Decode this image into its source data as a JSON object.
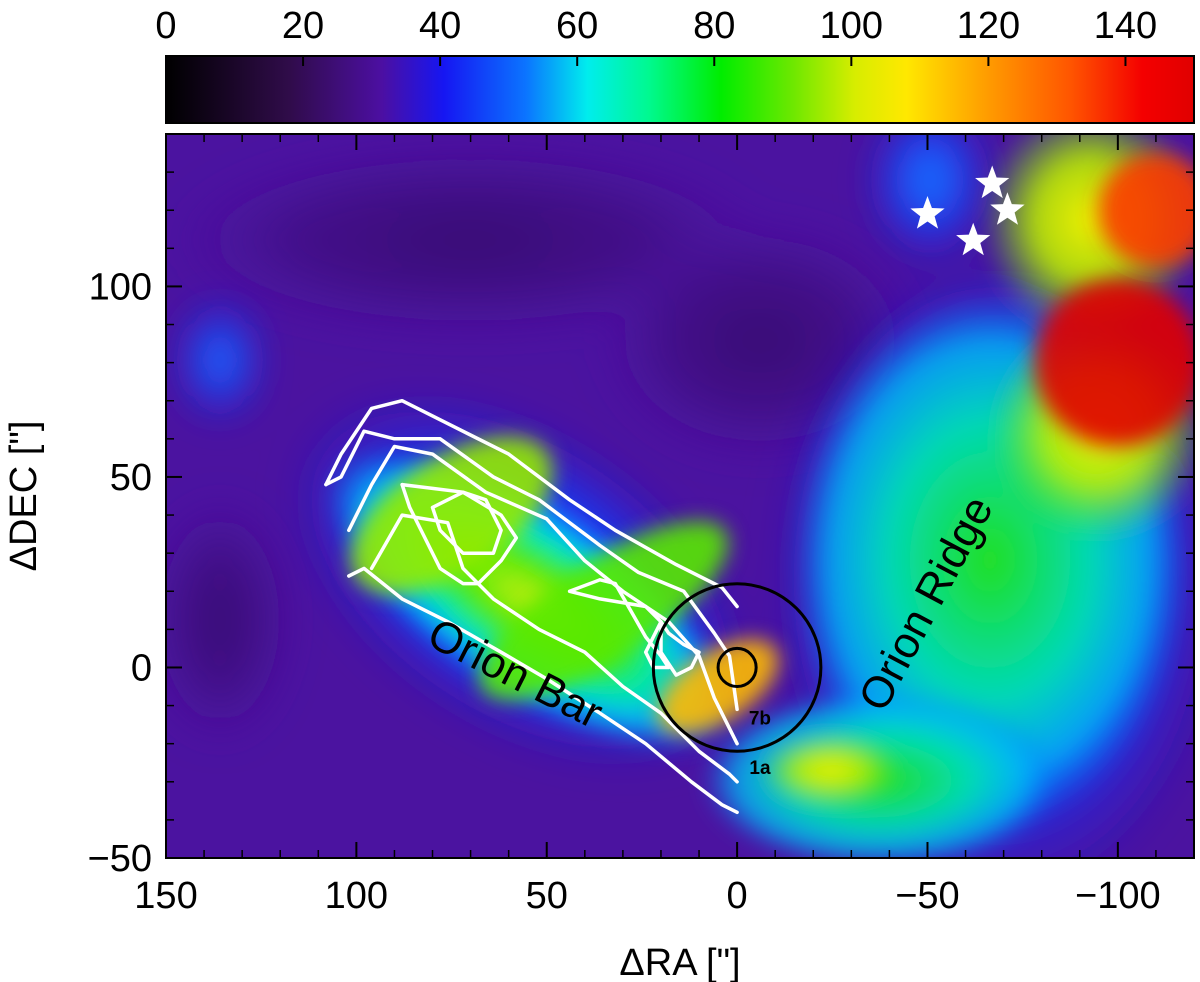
{
  "chart_data": {
    "type": "heatmap",
    "title": "",
    "xlabel": "ΔRA [\"]",
    "ylabel": "ΔDEC [\"]",
    "xlim": [
      150,
      -120
    ],
    "ylim": [
      -50,
      140
    ],
    "x_ticks": [
      150,
      100,
      50,
      0,
      -50,
      -100
    ],
    "x_tick_labels": [
      "150",
      "100",
      "50",
      "0",
      "−50",
      "−100"
    ],
    "y_ticks": [
      100,
      50,
      0,
      -50
    ],
    "y_tick_labels": [
      "100",
      "50",
      "0",
      "−50"
    ],
    "colorbar": {
      "range": [
        0,
        150
      ],
      "ticks": [
        0,
        20,
        40,
        60,
        80,
        100,
        120,
        140
      ],
      "tick_labels": [
        "0",
        "20",
        "40",
        "60",
        "80",
        "100",
        "120",
        "140"
      ],
      "colormap": "rainbow"
    },
    "grid": false,
    "annotations": [
      {
        "text": "Orion Bar",
        "x": 60,
        "y": -5,
        "angle_deg": 27
      },
      {
        "text": "Orion Ridge",
        "x": -53,
        "y": 15,
        "angle_deg": -62
      },
      {
        "text": "7b",
        "x": -6,
        "y": -15
      },
      {
        "text": "1a",
        "x": -6,
        "y": -28
      }
    ],
    "stars": [
      {
        "x": -50,
        "y": 119
      },
      {
        "x": -62,
        "y": 112
      },
      {
        "x": -67,
        "y": 127
      },
      {
        "x": -71,
        "y": 120
      }
    ],
    "beam_circles": [
      {
        "x": 0,
        "y": 0,
        "radius": 22
      },
      {
        "x": 0,
        "y": 0,
        "radius": 5
      }
    ],
    "contours": [
      [
        [
          108,
          48
        ],
        [
          104,
          56
        ],
        [
          96,
          68
        ],
        [
          88,
          70
        ],
        [
          76,
          64
        ],
        [
          60,
          56
        ],
        [
          44,
          44
        ],
        [
          32,
          36
        ],
        [
          16,
          27
        ],
        [
          4,
          21
        ],
        [
          0,
          16
        ]
      ],
      [
        [
          108,
          48
        ],
        [
          104,
          50
        ],
        [
          98,
          62
        ],
        [
          90,
          60
        ],
        [
          78,
          60
        ],
        [
          64,
          50
        ],
        [
          52,
          44
        ],
        [
          36,
          32
        ],
        [
          26,
          25
        ],
        [
          14,
          20
        ],
        [
          6,
          9
        ],
        [
          2,
          3
        ],
        [
          0,
          -11
        ]
      ],
      [
        [
          102,
          36
        ],
        [
          96,
          48
        ],
        [
          90,
          58
        ],
        [
          80,
          56
        ],
        [
          66,
          46
        ],
        [
          50,
          39
        ],
        [
          40,
          28
        ],
        [
          30,
          20
        ],
        [
          18,
          12
        ],
        [
          10,
          3
        ],
        [
          6,
          -8
        ],
        [
          0,
          -20
        ]
      ],
      [
        [
          96,
          26
        ],
        [
          88,
          40
        ],
        [
          76,
          38
        ],
        [
          72,
          26
        ],
        [
          64,
          18
        ],
        [
          52,
          10
        ],
        [
          40,
          4
        ],
        [
          30,
          -5
        ],
        [
          20,
          -12
        ],
        [
          10,
          -22
        ],
        [
          2,
          -28
        ],
        [
          0,
          -30
        ]
      ],
      [
        [
          102,
          24
        ],
        [
          98,
          26
        ],
        [
          88,
          18
        ],
        [
          76,
          12
        ],
        [
          62,
          4
        ],
        [
          50,
          -3
        ],
        [
          36,
          -12
        ],
        [
          24,
          -20
        ],
        [
          12,
          -30
        ],
        [
          4,
          -36
        ],
        [
          0,
          -38
        ]
      ],
      [
        [
          88,
          48
        ],
        [
          80,
          47
        ],
        [
          72,
          46
        ],
        [
          62,
          40
        ],
        [
          58,
          34
        ],
        [
          62,
          28
        ],
        [
          68,
          22
        ],
        [
          72,
          22
        ],
        [
          78,
          26
        ],
        [
          82,
          34
        ],
        [
          86,
          42
        ],
        [
          88,
          48
        ]
      ],
      [
        [
          80,
          42
        ],
        [
          72,
          46
        ],
        [
          66,
          44
        ],
        [
          62,
          36
        ],
        [
          64,
          30
        ],
        [
          72,
          30
        ],
        [
          78,
          36
        ],
        [
          80,
          42
        ]
      ],
      [
        [
          44,
          20
        ],
        [
          36,
          23
        ],
        [
          32,
          22
        ],
        [
          28,
          15
        ],
        [
          24,
          8
        ],
        [
          20,
          3
        ],
        [
          18,
          0
        ],
        [
          22,
          0
        ],
        [
          24,
          4
        ],
        [
          22,
          8
        ],
        [
          20,
          12
        ],
        [
          24,
          16
        ],
        [
          36,
          18
        ],
        [
          44,
          20
        ]
      ],
      [
        [
          20,
          12
        ],
        [
          18,
          9
        ],
        [
          14,
          6
        ],
        [
          10,
          4
        ],
        [
          12,
          0
        ],
        [
          16,
          -2
        ],
        [
          20,
          4
        ],
        [
          20,
          12
        ]
      ]
    ],
    "emission_blobs": [
      {
        "x": 75,
        "y": 40,
        "rx": 30,
        "ry": 15,
        "angle_deg": -33,
        "value": 95
      },
      {
        "x": 35,
        "y": 15,
        "rx": 38,
        "ry": 13,
        "angle_deg": -33,
        "value": 90
      },
      {
        "x": 5,
        "y": -5,
        "rx": 18,
        "ry": 9,
        "angle_deg": -33,
        "value": 115
      },
      {
        "x": -100,
        "y": 80,
        "rx": 22,
        "ry": 22,
        "angle_deg": 0,
        "value": 150
      },
      {
        "x": -110,
        "y": 120,
        "rx": 15,
        "ry": 15,
        "angle_deg": 0,
        "value": 135
      }
    ]
  }
}
